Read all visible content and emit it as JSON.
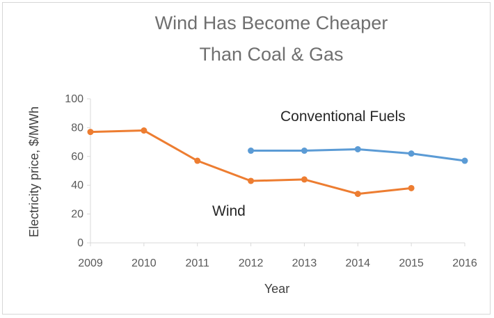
{
  "chart_data": {
    "type": "line",
    "title": [
      "Wind Has Become Cheaper",
      "Than Coal & Gas"
    ],
    "xlabel": "Year",
    "ylabel": "Electricity price, $/MWh",
    "x": [
      "2009",
      "2010",
      "2011",
      "2012",
      "2013",
      "2014",
      "2015",
      "2016"
    ],
    "ylim": [
      0,
      100
    ],
    "yticks": [
      0,
      20,
      40,
      60,
      80,
      100
    ],
    "grid": false,
    "series": [
      {
        "name": "Wind",
        "color": "#ed7d31",
        "x": [
          2009,
          2010,
          2011,
          2012,
          2013,
          2014,
          2015
        ],
        "values": [
          77,
          78,
          57,
          43,
          44,
          34,
          38
        ]
      },
      {
        "name": "Conventional Fuels",
        "color": "#5b9bd5",
        "x": [
          2012,
          2013,
          2014,
          2015,
          2016
        ],
        "values": [
          64,
          64,
          65,
          62,
          57
        ]
      }
    ]
  }
}
